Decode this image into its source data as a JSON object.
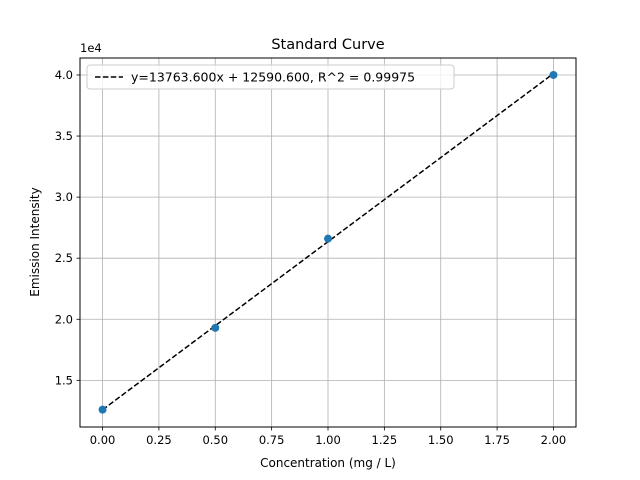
{
  "chart_data": {
    "type": "scatter",
    "title": "Standard Curve",
    "xlabel": "Concentration (mg / L)",
    "ylabel": "Emission Intensity",
    "y_offset_label": "1e4",
    "grid": true,
    "legend_position": "upper-left",
    "xlim": [
      -0.1,
      2.1
    ],
    "ylim": [
      11180,
      41390
    ],
    "x_ticks": [
      0,
      0.25,
      0.5,
      0.75,
      1.0,
      1.25,
      1.5,
      1.75,
      2.0
    ],
    "x_tick_labels": [
      "0.00",
      "0.25",
      "0.50",
      "0.75",
      "1.00",
      "1.25",
      "1.50",
      "1.75",
      "2.00"
    ],
    "y_ticks": [
      15000,
      20000,
      25000,
      30000,
      35000,
      40000
    ],
    "y_tick_labels": [
      "1.5",
      "2.0",
      "2.5",
      "3.0",
      "3.5",
      "4.0"
    ],
    "series": [
      {
        "kind": "points",
        "x": [
          0.0,
          0.5,
          1.0,
          2.0
        ],
        "y": [
          12600,
          19300,
          26600,
          40000
        ],
        "color": "#1f77b4"
      },
      {
        "kind": "fit-line",
        "name": "y=13763.600x + 12590.600, R^2 = 0.99975",
        "slope": 13763.6,
        "intercept": 12590.6,
        "x_range": [
          0.0,
          2.0
        ],
        "color": "#000000",
        "style": "dashed"
      }
    ]
  }
}
